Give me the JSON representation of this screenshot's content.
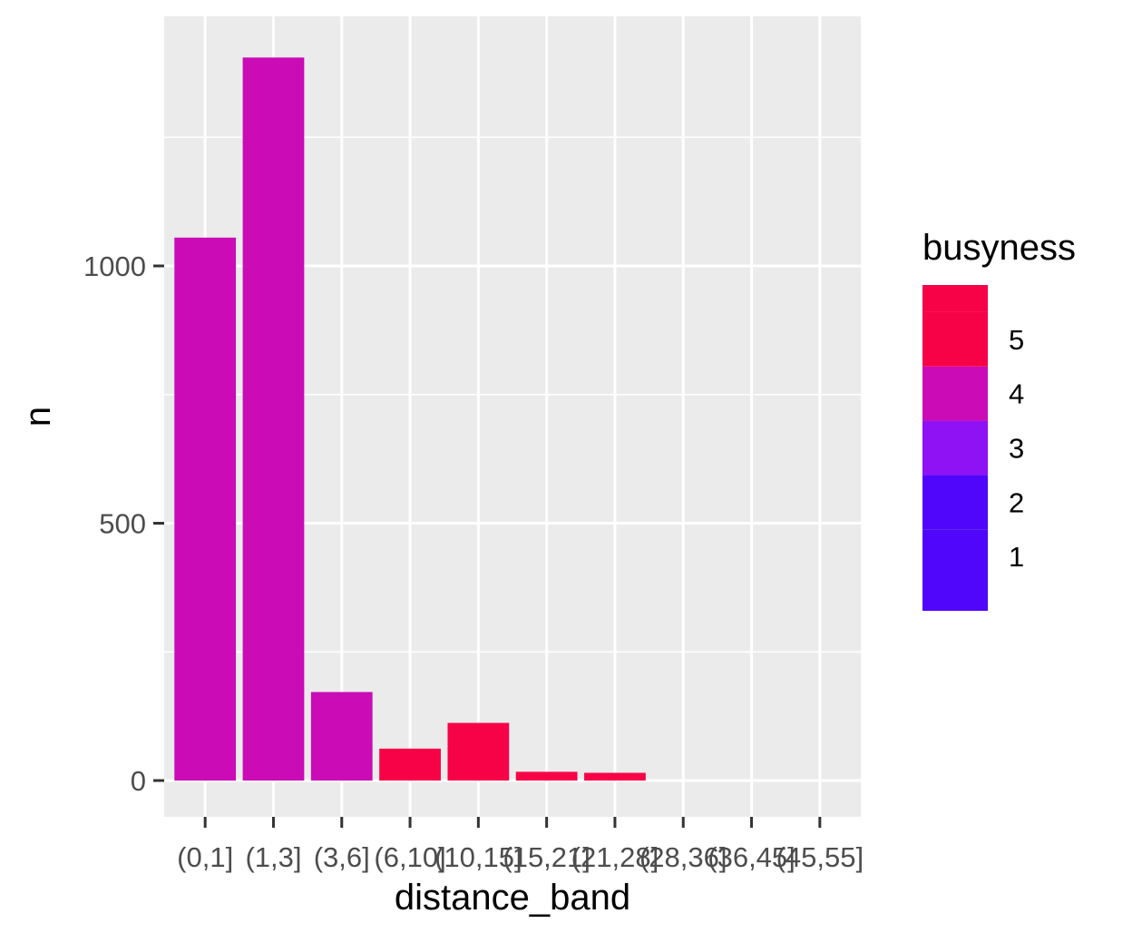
{
  "chart_data": {
    "type": "bar",
    "categories": [
      "(0,1]",
      "(1,3]",
      "(3,6]",
      "(6,10]",
      "(10,15]",
      "(15,21]",
      "(21,28]",
      "(28,36]",
      "(36,45]",
      "(45,55]"
    ],
    "values": [
      1055,
      1405,
      172,
      62,
      112,
      17,
      15,
      0,
      0,
      0
    ],
    "bar_busyness": [
      4,
      4,
      4,
      5,
      5,
      5,
      5,
      null,
      null,
      null
    ],
    "title": "",
    "xlabel": "distance_band",
    "ylabel": "n",
    "ylim": [
      -70,
      1475
    ],
    "y_major_ticks": [
      0,
      500,
      1000
    ],
    "y_minor_gridlines": [
      250,
      750,
      1250
    ],
    "grid": true,
    "panel_background": "#EBEBEB",
    "gridline_color": "#FFFFFF",
    "legend": {
      "title": "busyness",
      "position": "right",
      "scale_min": 0,
      "scale_max": 6,
      "labels": [
        "5",
        "4",
        "3",
        "2",
        "1"
      ],
      "levels": [
        {
          "value": 1,
          "color": "#4F06FB"
        },
        {
          "value": 2,
          "color": "#4F06FB"
        },
        {
          "value": 3,
          "color": "#8E12F3"
        },
        {
          "value": 4,
          "color": "#CA0BB6"
        },
        {
          "value": 5,
          "color": "#F70247"
        },
        {
          "value": 6,
          "color": "#F70247"
        }
      ]
    },
    "colors": {
      "busyness_4": "#CA0BB6",
      "busyness_5": "#F70247"
    }
  }
}
